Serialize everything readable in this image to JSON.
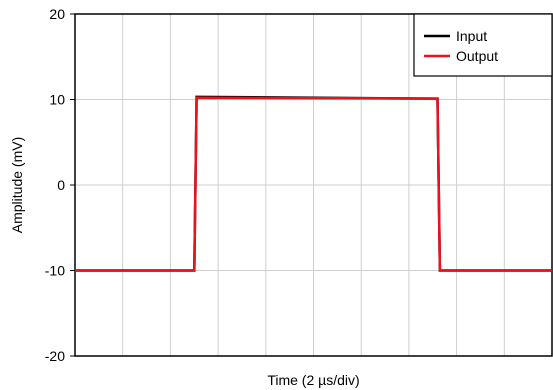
{
  "chart_data": {
    "type": "line",
    "title": "",
    "xlabel": "Time (2 µs/div)",
    "ylabel": "Amplitude (mV)",
    "xlim": [
      0,
      20
    ],
    "ylim": [
      -20,
      20
    ],
    "x_divisions": 10,
    "y_ticks": [
      -20,
      -10,
      0,
      10,
      20
    ],
    "y_tick_labels": [
      "-20",
      "-10",
      "0",
      "10",
      "20"
    ],
    "grid": true,
    "legend_position": "top-right",
    "series": [
      {
        "name": "Input",
        "color": "#000000",
        "x": [
          0,
          5.0,
          5.1,
          15.2,
          15.3,
          20
        ],
        "y": [
          -10,
          -10,
          10.3,
          10.1,
          -10,
          -10
        ]
      },
      {
        "name": "Output",
        "color": "#e8141c",
        "x": [
          0,
          5.0,
          5.1,
          15.2,
          15.3,
          20
        ],
        "y": [
          -10,
          -10,
          10.2,
          10.1,
          -10,
          -10
        ]
      }
    ]
  }
}
